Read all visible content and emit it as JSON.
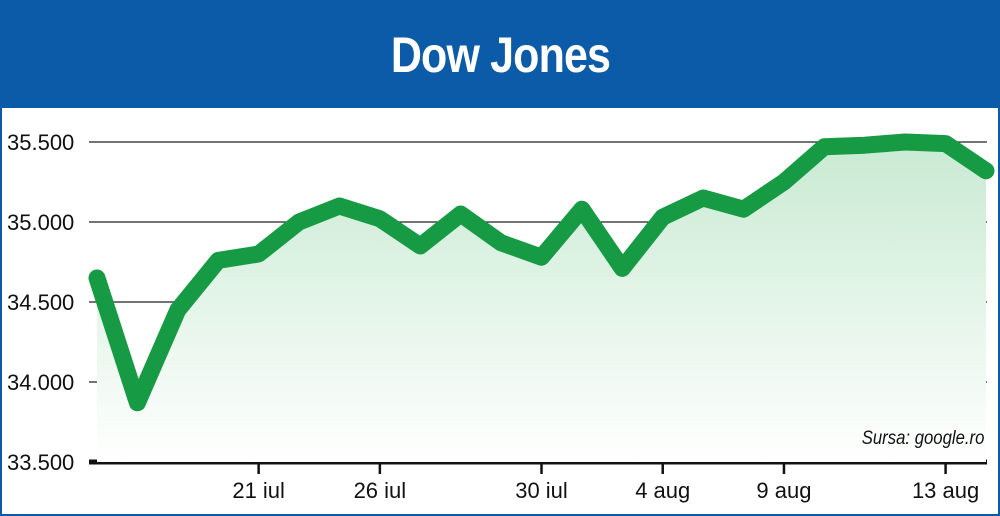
{
  "header": {
    "title": "Dow Jones"
  },
  "source": "Sursa: google.ro",
  "colors": {
    "header": "#0b5ba8",
    "line": "#169a44",
    "fill": "#d3eedb",
    "grid": "#222222"
  },
  "chart_data": {
    "type": "line",
    "title": "Dow Jones",
    "xlabel": "",
    "ylabel": "",
    "ylim": [
      33500,
      35500
    ],
    "yticks": [
      35500,
      35000,
      34500,
      34000,
      33500
    ],
    "ytick_labels": [
      "35.500",
      "35.000",
      "34.500",
      "34.000",
      "33.500"
    ],
    "xtick_labels": [
      "21 iul",
      "26 iul",
      "30 iul",
      "4 aug",
      "9 aug",
      "13 aug"
    ],
    "x": [
      "15 iul",
      "16 iul",
      "19 iul",
      "20 iul",
      "21 iul",
      "22 iul",
      "23 iul",
      "26 iul",
      "27 iul",
      "28 iul",
      "29 iul",
      "30 iul",
      "2 aug",
      "3 aug",
      "4 aug",
      "5 aug",
      "6 aug",
      "9 aug",
      "10 aug",
      "11 aug",
      "12 aug",
      "13 aug",
      "16 aug"
    ],
    "series": [
      {
        "values": [
          34650,
          33870,
          34450,
          34760,
          34800,
          35000,
          35100,
          35020,
          34850,
          35050,
          34870,
          34780,
          35080,
          34710,
          35030,
          35150,
          35080,
          35250,
          35470,
          35480,
          35500,
          35490,
          35320
        ]
      }
    ],
    "grid": true
  }
}
